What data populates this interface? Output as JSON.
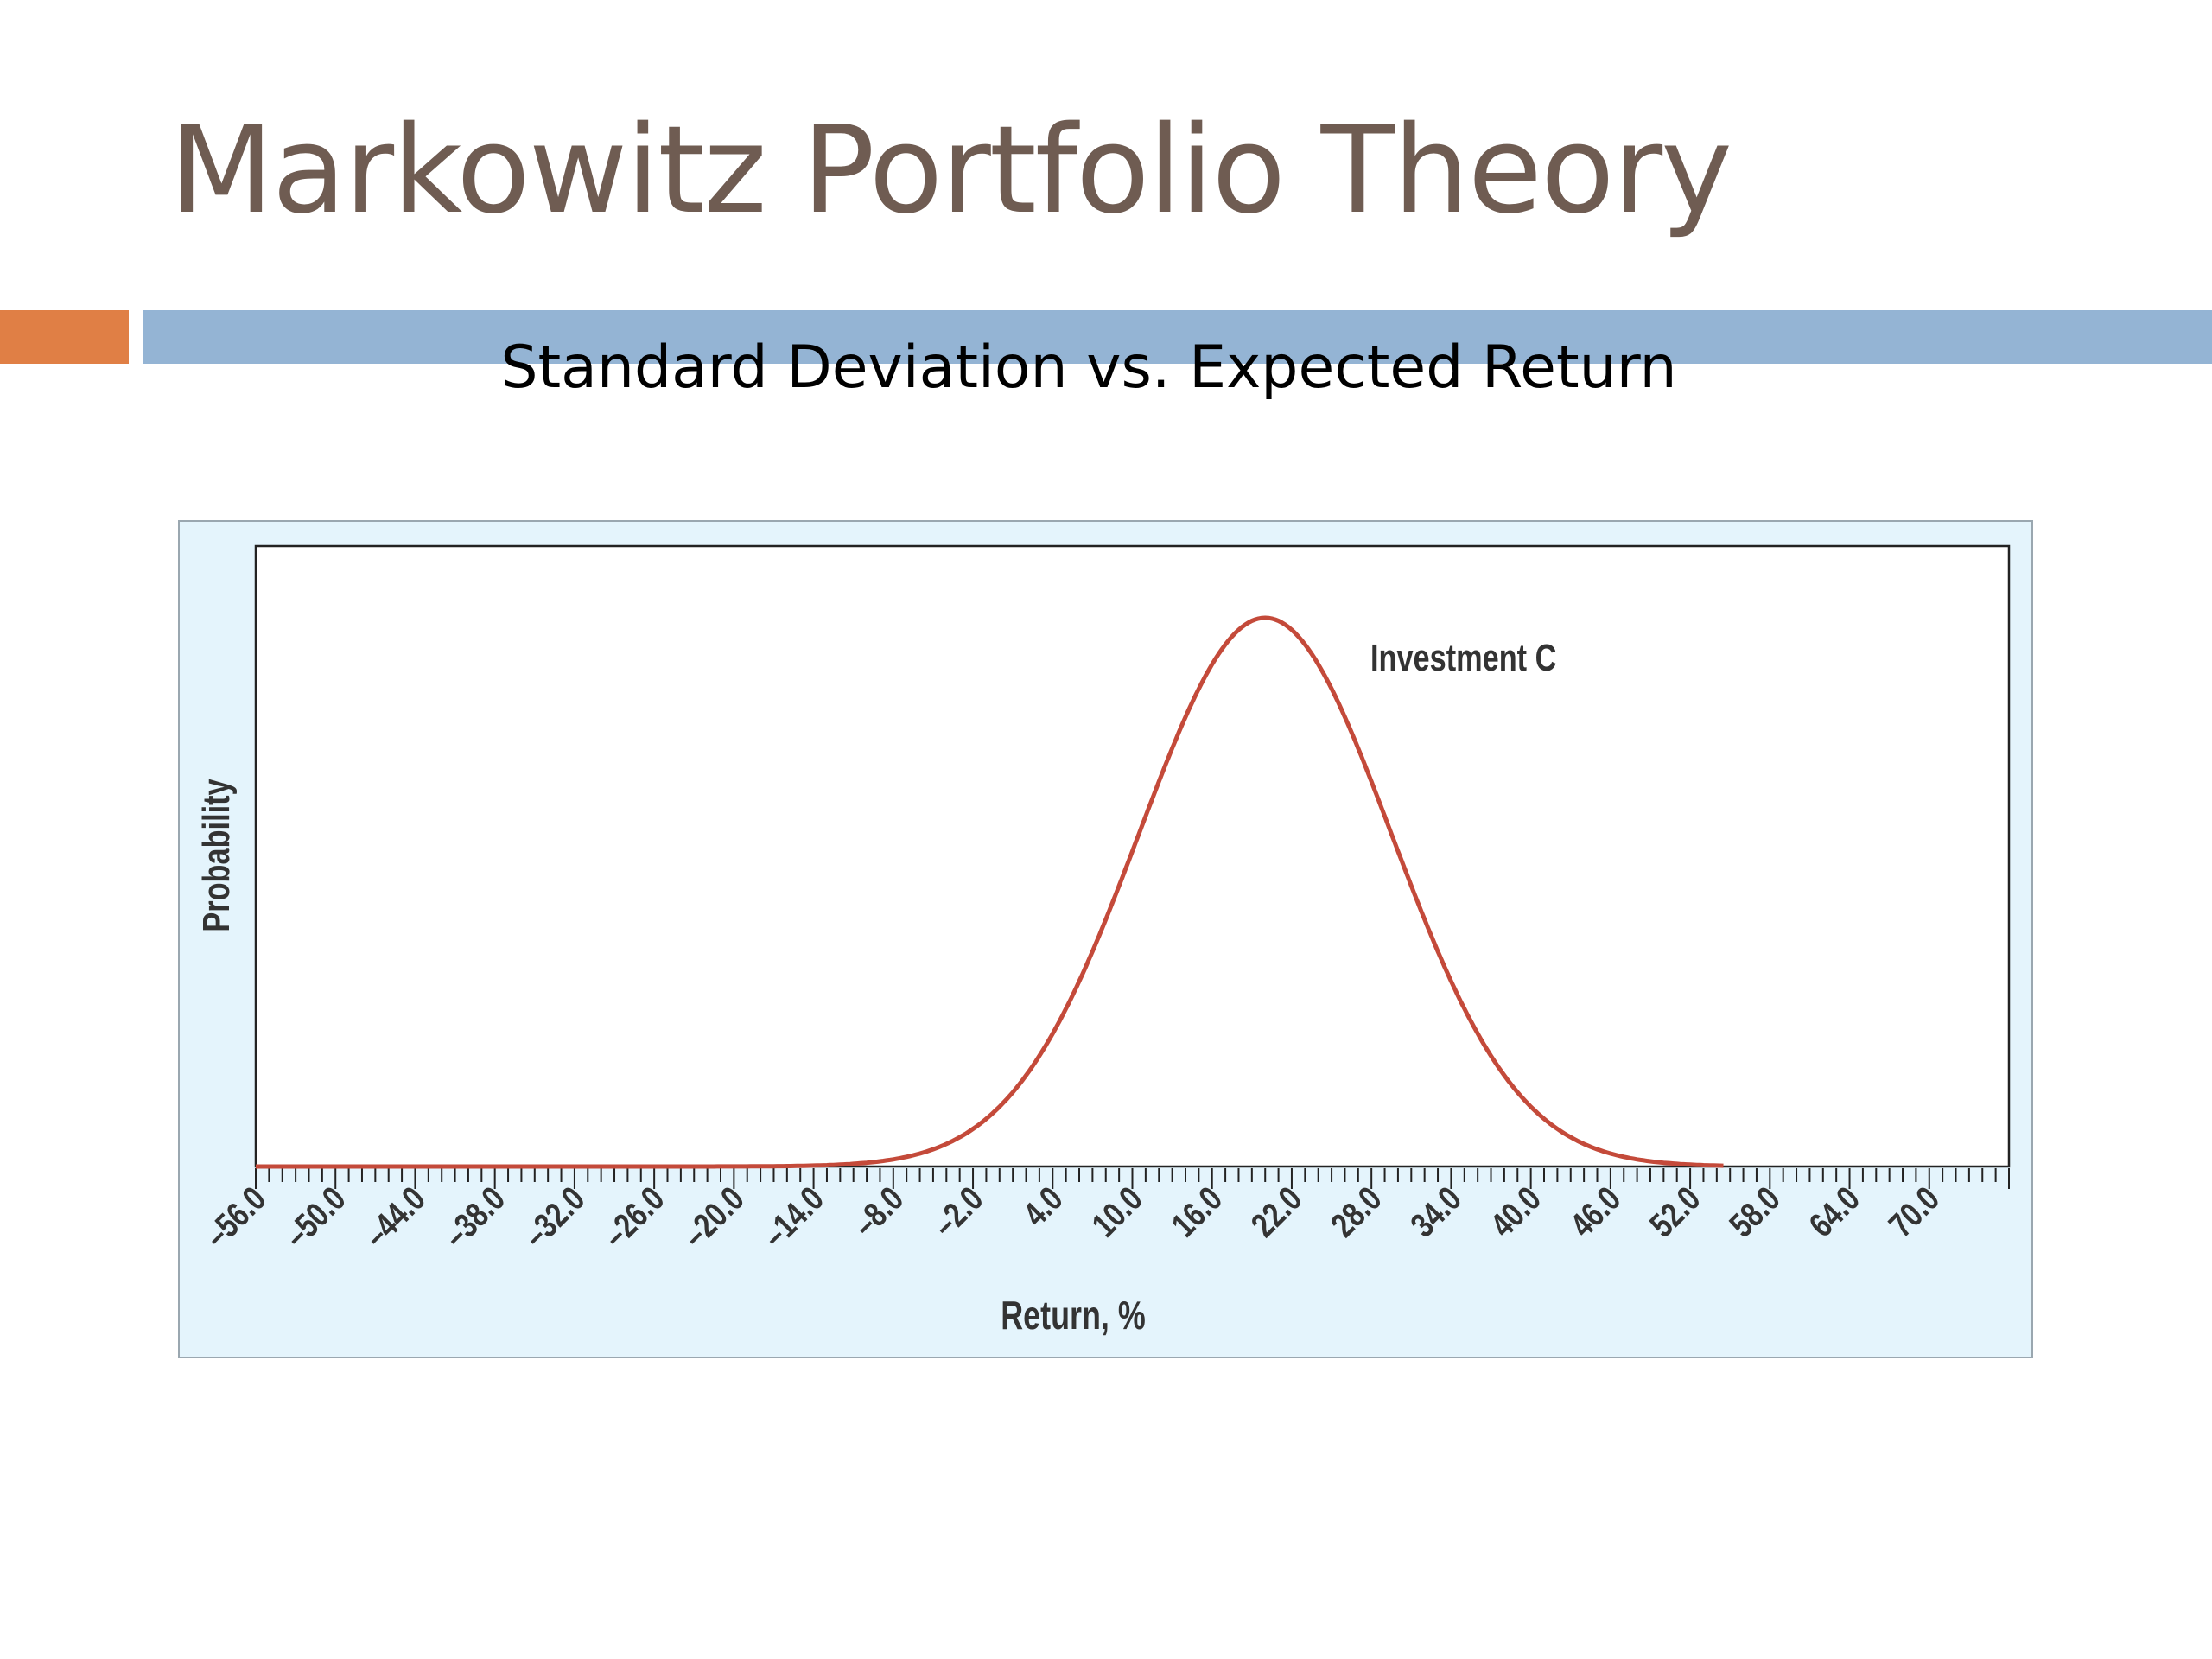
{
  "slide": {
    "title": "Markowitz Portfolio Theory",
    "accent_color": "#E07F45",
    "bar_color": "#94B4D4",
    "title_color": "#6F5C52"
  },
  "chart_data": {
    "type": "line",
    "title": "Standard Deviation vs. Expected Return",
    "xlabel": "Return, %",
    "ylabel": "Probability",
    "x_tick_labels": [
      "–56.0",
      "–50.0",
      "–44.0",
      "–38.0",
      "–32.0",
      "–26.0",
      "–20.0",
      "–14.0",
      "–8.0",
      "–2.0",
      "4.0",
      "10.0",
      "16.0",
      "22.0",
      "28.0",
      "34.0",
      "40.0",
      "46.0",
      "52.0",
      "58.0",
      "64.0",
      "70.0"
    ],
    "xlim": [
      -56,
      76
    ],
    "ylim": [
      0,
      1.1
    ],
    "grid": false,
    "panel_background": "#E4F4FC",
    "line_color": "#C44A3A",
    "series": [
      {
        "name": "Investment C",
        "distribution": "normal",
        "mean": 20,
        "std_dev": 9.5,
        "x": [
          -56,
          -14,
          -8,
          -2,
          4,
          10,
          16,
          20,
          24,
          30,
          36,
          42,
          48,
          54
        ],
        "y": [
          0,
          0.01,
          0.05,
          0.07,
          0.24,
          0.57,
          0.92,
          1.0,
          0.92,
          0.57,
          0.24,
          0.07,
          0.02,
          0
        ]
      }
    ]
  }
}
